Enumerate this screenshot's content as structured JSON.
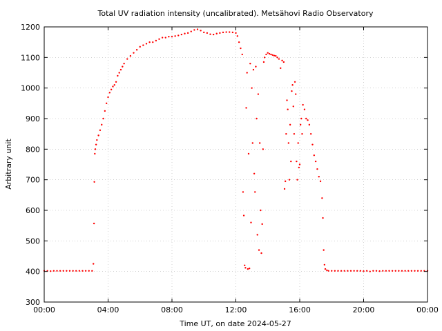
{
  "chart_data": {
    "type": "scatter",
    "title": "Total UV radiation intensity (uncalibrated). Metsähovi Radio Observatory",
    "xlabel": "Time UT, on date 2024-05-27",
    "ylabel": "Arbitrary unit",
    "xlim": [
      0,
      24
    ],
    "ylim": [
      300,
      1200
    ],
    "grid": true,
    "x_ticks": [
      {
        "value": 0,
        "label": "00:00"
      },
      {
        "value": 4,
        "label": "04:00"
      },
      {
        "value": 8,
        "label": "08:00"
      },
      {
        "value": 12,
        "label": "12:00"
      },
      {
        "value": 16,
        "label": "16:00"
      },
      {
        "value": 20,
        "label": "20:00"
      },
      {
        "value": 24,
        "label": "00:00"
      }
    ],
    "y_ticks": [
      {
        "value": 300,
        "label": "300"
      },
      {
        "value": 400,
        "label": "400"
      },
      {
        "value": 500,
        "label": "500"
      },
      {
        "value": 600,
        "label": "600"
      },
      {
        "value": 700,
        "label": "700"
      },
      {
        "value": 800,
        "label": "800"
      },
      {
        "value": 900,
        "label": "900"
      },
      {
        "value": 1000,
        "label": "1000"
      },
      {
        "value": 1100,
        "label": "1100"
      },
      {
        "value": 1200,
        "label": "1200"
      }
    ],
    "series_color": "#ff0000",
    "series": [
      {
        "values": [
          [
            0.0,
            402
          ],
          [
            0.2,
            402
          ],
          [
            0.4,
            401
          ],
          [
            0.6,
            402
          ],
          [
            0.8,
            402
          ],
          [
            1.0,
            402
          ],
          [
            1.2,
            402
          ],
          [
            1.4,
            402
          ],
          [
            1.6,
            402
          ],
          [
            1.8,
            402
          ],
          [
            2.0,
            402
          ],
          [
            2.2,
            402
          ],
          [
            2.4,
            402
          ],
          [
            2.6,
            402
          ],
          [
            2.8,
            402
          ],
          [
            3.0,
            402
          ],
          [
            3.08,
            425
          ],
          [
            3.12,
            557
          ],
          [
            3.14,
            693
          ],
          [
            3.17,
            785
          ],
          [
            3.2,
            800
          ],
          [
            3.25,
            815
          ],
          [
            3.3,
            830
          ],
          [
            3.4,
            845
          ],
          [
            3.5,
            862
          ],
          [
            3.6,
            880
          ],
          [
            3.7,
            900
          ],
          [
            3.8,
            925
          ],
          [
            3.9,
            950
          ],
          [
            4.0,
            970
          ],
          [
            4.1,
            985
          ],
          [
            4.2,
            995
          ],
          [
            4.3,
            1005
          ],
          [
            4.4,
            1010
          ],
          [
            4.5,
            1020
          ],
          [
            4.6,
            1040
          ],
          [
            4.7,
            1050
          ],
          [
            4.8,
            1060
          ],
          [
            4.9,
            1070
          ],
          [
            5.0,
            1080
          ],
          [
            5.2,
            1095
          ],
          [
            5.4,
            1105
          ],
          [
            5.6,
            1115
          ],
          [
            5.8,
            1125
          ],
          [
            6.0,
            1135
          ],
          [
            6.2,
            1140
          ],
          [
            6.4,
            1145
          ],
          [
            6.6,
            1150
          ],
          [
            6.8,
            1150
          ],
          [
            7.0,
            1155
          ],
          [
            7.2,
            1160
          ],
          [
            7.4,
            1165
          ],
          [
            7.6,
            1165
          ],
          [
            7.8,
            1168
          ],
          [
            8.0,
            1168
          ],
          [
            8.2,
            1170
          ],
          [
            8.4,
            1172
          ],
          [
            8.6,
            1175
          ],
          [
            8.8,
            1178
          ],
          [
            9.0,
            1180
          ],
          [
            9.2,
            1185
          ],
          [
            9.4,
            1190
          ],
          [
            9.6,
            1192
          ],
          [
            9.8,
            1188
          ],
          [
            10.0,
            1182
          ],
          [
            10.2,
            1180
          ],
          [
            10.4,
            1176
          ],
          [
            10.6,
            1175
          ],
          [
            10.8,
            1178
          ],
          [
            11.0,
            1180
          ],
          [
            11.2,
            1182
          ],
          [
            11.4,
            1183
          ],
          [
            11.6,
            1183
          ],
          [
            11.8,
            1182
          ],
          [
            12.0,
            1180
          ],
          [
            12.1,
            1170
          ],
          [
            12.2,
            1150
          ],
          [
            12.3,
            1130
          ],
          [
            12.4,
            1110
          ],
          [
            12.45,
            660
          ],
          [
            12.5,
            583
          ],
          [
            12.55,
            420
          ],
          [
            12.6,
            412
          ],
          [
            12.65,
            935
          ],
          [
            12.7,
            1050
          ],
          [
            12.75,
            408
          ],
          [
            12.8,
            785
          ],
          [
            12.85,
            410
          ],
          [
            12.9,
            1080
          ],
          [
            12.95,
            560
          ],
          [
            13.0,
            1000
          ],
          [
            13.05,
            820
          ],
          [
            13.1,
            1060
          ],
          [
            13.15,
            720
          ],
          [
            13.2,
            660
          ],
          [
            13.25,
            1070
          ],
          [
            13.3,
            900
          ],
          [
            13.35,
            520
          ],
          [
            13.4,
            980
          ],
          [
            13.45,
            470
          ],
          [
            13.5,
            820
          ],
          [
            13.55,
            600
          ],
          [
            13.6,
            460
          ],
          [
            13.65,
            555
          ],
          [
            13.7,
            800
          ],
          [
            13.75,
            1085
          ],
          [
            13.8,
            1100
          ],
          [
            13.9,
            1110
          ],
          [
            14.0,
            1115
          ],
          [
            14.1,
            1112
          ],
          [
            14.2,
            1110
          ],
          [
            14.3,
            1108
          ],
          [
            14.4,
            1106
          ],
          [
            14.5,
            1105
          ],
          [
            14.6,
            1100
          ],
          [
            14.7,
            1095
          ],
          [
            14.8,
            1065
          ],
          [
            14.9,
            1090
          ],
          [
            15.0,
            1085
          ],
          [
            15.05,
            670
          ],
          [
            15.1,
            695
          ],
          [
            15.15,
            850
          ],
          [
            15.2,
            960
          ],
          [
            15.25,
            930
          ],
          [
            15.3,
            820
          ],
          [
            15.35,
            700
          ],
          [
            15.4,
            880
          ],
          [
            15.45,
            760
          ],
          [
            15.5,
            990
          ],
          [
            15.55,
            1010
          ],
          [
            15.6,
            940
          ],
          [
            15.65,
            850
          ],
          [
            15.7,
            1020
          ],
          [
            15.75,
            980
          ],
          [
            15.8,
            760
          ],
          [
            15.85,
            700
          ],
          [
            15.9,
            820
          ],
          [
            15.95,
            740
          ],
          [
            16.0,
            750
          ],
          [
            16.05,
            880
          ],
          [
            16.1,
            900
          ],
          [
            16.15,
            850
          ],
          [
            16.2,
            945
          ],
          [
            16.3,
            930
          ],
          [
            16.4,
            900
          ],
          [
            16.5,
            895
          ],
          [
            16.6,
            880
          ],
          [
            16.7,
            850
          ],
          [
            16.8,
            815
          ],
          [
            16.9,
            780
          ],
          [
            17.0,
            760
          ],
          [
            17.1,
            735
          ],
          [
            17.2,
            710
          ],
          [
            17.3,
            695
          ],
          [
            17.4,
            640
          ],
          [
            17.45,
            575
          ],
          [
            17.5,
            470
          ],
          [
            17.55,
            422
          ],
          [
            17.6,
            408
          ],
          [
            17.7,
            404
          ],
          [
            17.8,
            402
          ],
          [
            18.0,
            402
          ],
          [
            18.2,
            402
          ],
          [
            18.4,
            402
          ],
          [
            18.6,
            402
          ],
          [
            18.8,
            402
          ],
          [
            19.0,
            402
          ],
          [
            19.2,
            402
          ],
          [
            19.4,
            402
          ],
          [
            19.6,
            402
          ],
          [
            19.8,
            402
          ],
          [
            20.0,
            401
          ],
          [
            20.2,
            402
          ],
          [
            20.4,
            400
          ],
          [
            20.6,
            402
          ],
          [
            20.8,
            402
          ],
          [
            21.0,
            401
          ],
          [
            21.2,
            402
          ],
          [
            21.4,
            402
          ],
          [
            21.6,
            402
          ],
          [
            21.8,
            402
          ],
          [
            22.0,
            402
          ],
          [
            22.2,
            402
          ],
          [
            22.4,
            402
          ],
          [
            22.6,
            402
          ],
          [
            22.8,
            402
          ],
          [
            23.0,
            402
          ],
          [
            23.2,
            402
          ],
          [
            23.4,
            402
          ],
          [
            23.6,
            402
          ],
          [
            23.8,
            402
          ],
          [
            24.0,
            402
          ]
        ]
      }
    ]
  }
}
